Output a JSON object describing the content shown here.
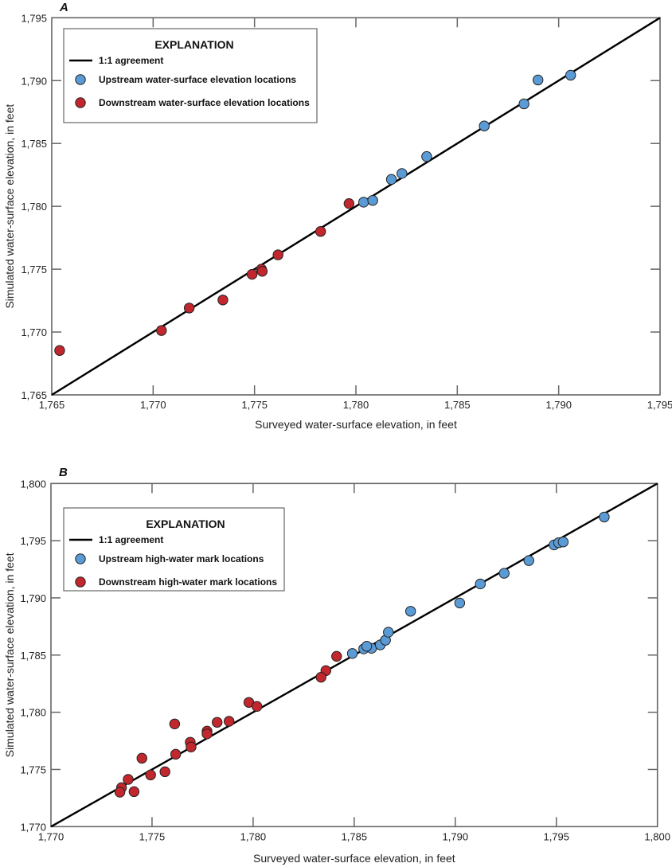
{
  "colors": {
    "upstream": "#5b9bd5",
    "downstream": "#c1272d",
    "line": "#000000",
    "axis": "#666666"
  },
  "chart_data": [
    {
      "type": "scatter",
      "panel": "A",
      "xlabel": "Surveyed water-surface elevation, in feet",
      "ylabel": "Simulated water-surface elevation, in feet",
      "xlim": [
        1765,
        1795
      ],
      "ylim": [
        1765,
        1795
      ],
      "xticks": [
        "1,765",
        "1,770",
        "1,775",
        "1,780",
        "1,785",
        "1,790",
        "1,795"
      ],
      "yticks": [
        "1,765",
        "1,770",
        "1,775",
        "1,780",
        "1,785",
        "1,790",
        "1,795"
      ],
      "tick_values": [
        1765,
        1770,
        1775,
        1780,
        1785,
        1790,
        1795
      ],
      "grid": false,
      "legend_placement": "top-left",
      "legend_title": "EXPLANATION",
      "line_label": "1:1 agreement",
      "series": [
        {
          "name": "Upstream water-surface elevation locations",
          "color_key": "upstream",
          "x": [
            1780.38,
            1780.83,
            1781.75,
            1782.27,
            1783.49,
            1786.33,
            1788.29,
            1788.98,
            1790.59
          ],
          "y": [
            1780.33,
            1780.47,
            1782.14,
            1782.61,
            1783.96,
            1786.39,
            1788.15,
            1790.05,
            1790.43
          ]
        },
        {
          "name": "Downstream water-surface elevation locations",
          "color_key": "downstream",
          "x": [
            1765.39,
            1770.41,
            1771.78,
            1773.44,
            1774.88,
            1775.34,
            1775.38,
            1776.16,
            1778.26,
            1779.66
          ],
          "y": [
            1768.53,
            1770.12,
            1771.91,
            1772.55,
            1774.59,
            1775.0,
            1774.83,
            1776.14,
            1778.0,
            1780.22
          ]
        }
      ]
    },
    {
      "type": "scatter",
      "panel": "B",
      "xlabel": "Surveyed water-surface elevation, in feet",
      "ylabel": "Simulated water-surface elevation, in feet",
      "xlim": [
        1770,
        1800
      ],
      "ylim": [
        1770,
        1800
      ],
      "xticks": [
        "1,770",
        "1,775",
        "1,780",
        "1,785",
        "1,790",
        "1,795",
        "1,800"
      ],
      "yticks": [
        "1,770",
        "1,775",
        "1,780",
        "1,785",
        "1,790",
        "1,795",
        "1,800"
      ],
      "tick_values": [
        1770,
        1775,
        1780,
        1785,
        1790,
        1795,
        1800
      ],
      "grid": false,
      "legend_placement": "top-left",
      "legend_title": "EXPLANATION",
      "line_label": "1:1 agreement",
      "series": [
        {
          "name": "Upstream high-water mark locations",
          "color_key": "upstream",
          "x": [
            1784.91,
            1785.47,
            1785.86,
            1785.62,
            1786.29,
            1786.55,
            1786.69,
            1787.79,
            1790.22,
            1791.24,
            1792.42,
            1793.64,
            1794.89,
            1795.11,
            1795.34,
            1797.37
          ],
          "y": [
            1785.14,
            1785.54,
            1785.59,
            1785.77,
            1785.89,
            1786.3,
            1787.0,
            1788.83,
            1789.55,
            1791.22,
            1792.15,
            1793.26,
            1794.63,
            1794.82,
            1794.89,
            1797.07
          ]
        },
        {
          "name": "Downstream high-water mark locations",
          "color_key": "downstream",
          "x": [
            1784.13,
            1783.6,
            1783.36,
            1779.79,
            1780.19,
            1776.12,
            1778.22,
            1778.81,
            1777.72,
            1777.72,
            1776.89,
            1776.93,
            1776.17,
            1774.5,
            1774.93,
            1775.64,
            1773.82,
            1773.49,
            1773.41,
            1774.11
          ],
          "y": [
            1784.89,
            1783.64,
            1783.06,
            1780.86,
            1780.51,
            1778.98,
            1779.12,
            1779.21,
            1778.35,
            1778.11,
            1777.38,
            1776.96,
            1776.33,
            1775.98,
            1774.52,
            1774.8,
            1774.13,
            1773.41,
            1773.01,
            1773.06
          ]
        }
      ]
    }
  ]
}
